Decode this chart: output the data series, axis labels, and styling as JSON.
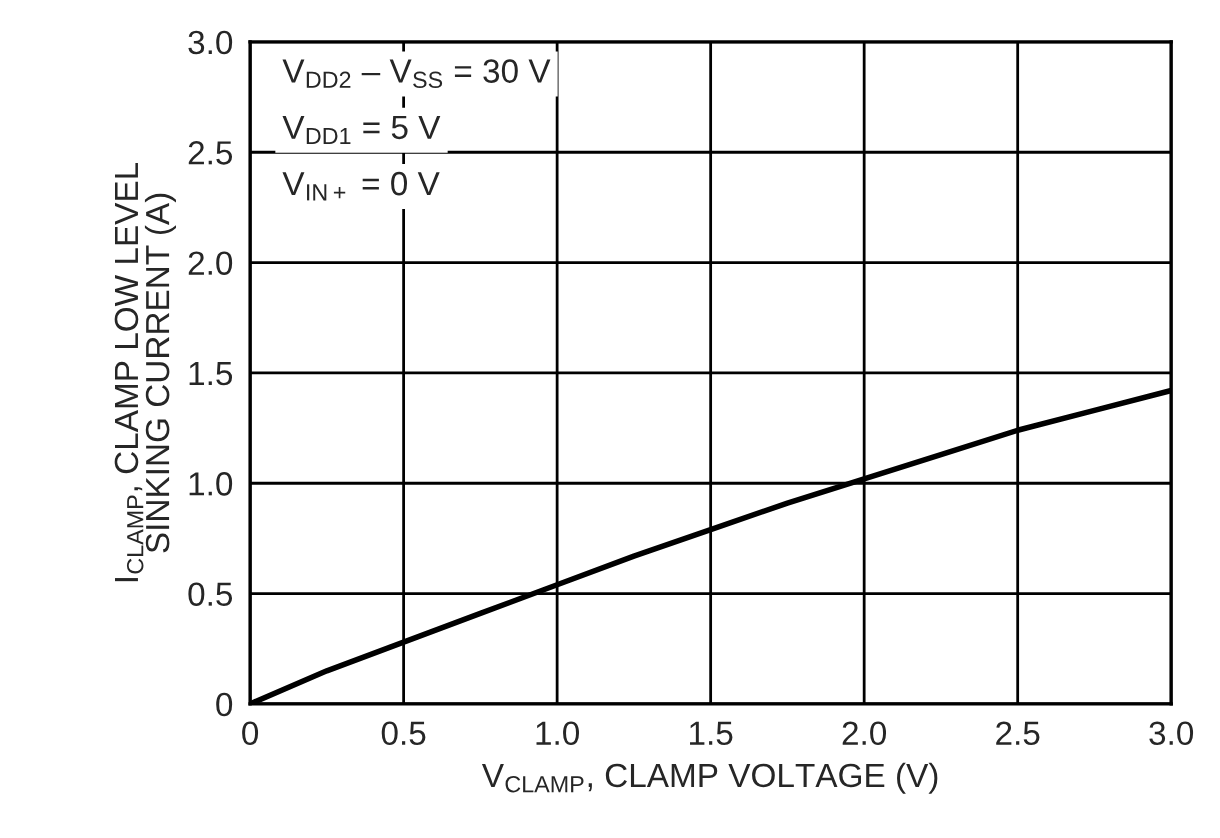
{
  "chart_data": {
    "type": "line",
    "xlabel": "V$_{CLAMP}$, CLAMP VOLTAGE (V)",
    "ylabel": "I$_{CLAMP}$, CLAMP LOW LEVEL\nSINKING CURRENT (A)",
    "annotations": [
      "V$_{DD2}$ – V$_{SS}$ = 30 V",
      "V$_{DD1}$ = 5 V",
      "V$_{IN+}$ = 0 V"
    ],
    "x": [
      0,
      0.25,
      0.5,
      0.75,
      1.0,
      1.25,
      1.5,
      1.75,
      2.0,
      2.25,
      2.5,
      2.75,
      3.0
    ],
    "series": [
      {
        "color": "#000000",
        "values": [
          0,
          0.15,
          0.28,
          0.41,
          0.54,
          0.67,
          0.79,
          0.91,
          1.02,
          1.13,
          1.24,
          1.33,
          1.42
        ]
      }
    ],
    "xlim": [
      0,
      3.0
    ],
    "ylim": [
      0,
      3.0
    ],
    "xticks": [
      0,
      0.5,
      {
        "value": 1,
        "label": "1.0"
      },
      1.5,
      {
        "value": 2,
        "label": "2.0"
      },
      2.5,
      {
        "value": 3,
        "label": "3.0"
      }
    ],
    "yticks": [
      0,
      0.5,
      {
        "value": 1,
        "label": "1.0"
      },
      1.5,
      {
        "value": 2,
        "label": "2.0"
      },
      2.5,
      {
        "value": 3,
        "label": "3.0"
      }
    ],
    "grid": true,
    "line_style": "solid",
    "marker": "none"
  }
}
